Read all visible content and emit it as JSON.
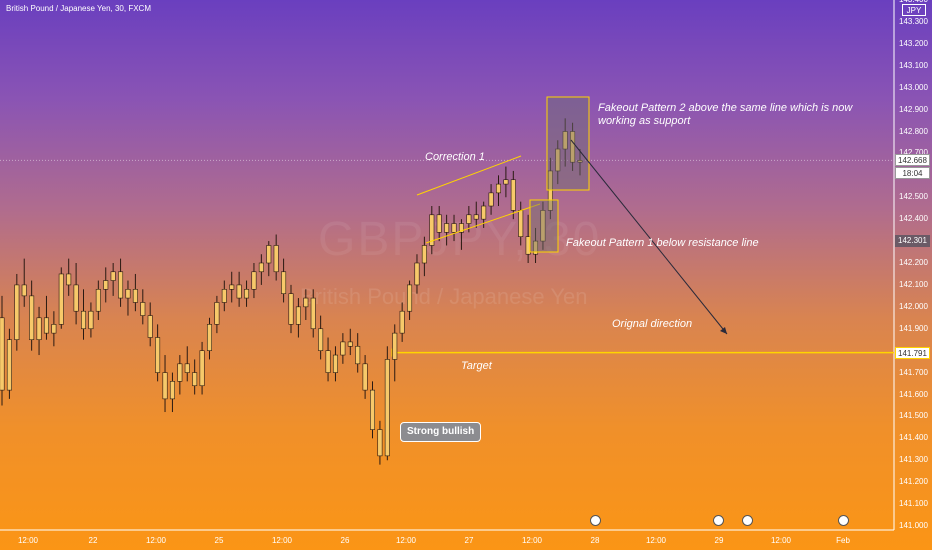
{
  "symbol_title": "British Pound / Japanese Yen, 30, FXCM",
  "currency": "JPY",
  "watermark": {
    "ticker": "GBPJPY, 30",
    "name": "British Pound / Japanese Yen"
  },
  "colors": {
    "candle": "#f7c96a",
    "wick": "#2a1a12",
    "target_line": "#ffd400",
    "box_fill": "rgba(110,110,110,0.45)",
    "box_border": "#ffd400"
  },
  "chart_data": {
    "type": "candlestick",
    "title": "British Pound / Japanese Yen, 30, FXCM",
    "ylim": [
      141.0,
      143.4
    ],
    "y_ticks": [
      "143.400",
      "143.300",
      "143.200",
      "143.100",
      "143.000",
      "142.900",
      "142.800",
      "142.700",
      "142.600",
      "142.500",
      "142.400",
      "142.300",
      "142.200",
      "142.100",
      "142.000",
      "141.900",
      "141.800",
      "141.700",
      "141.600",
      "141.500",
      "141.400",
      "141.300",
      "141.200",
      "141.100",
      "141.000"
    ],
    "x_ticks": [
      "12:00",
      "22",
      "12:00",
      "25",
      "12:00",
      "26",
      "12:00",
      "27",
      "12:00",
      "28",
      "12:00",
      "29",
      "12:00",
      "Feb"
    ],
    "price_badges": [
      {
        "value": "142.668",
        "style": "current"
      },
      {
        "value": "18:04",
        "style": "countdown"
      },
      {
        "value": "142.301",
        "style": "dark"
      },
      {
        "value": "141.791",
        "style": "target"
      }
    ],
    "target_level": 141.791,
    "current_price": 142.668,
    "grid": false,
    "legend": "none",
    "candles": [
      [
        141.95,
        142.05,
        141.55,
        141.62
      ],
      [
        141.62,
        141.9,
        141.58,
        141.85
      ],
      [
        141.85,
        142.15,
        141.8,
        142.1
      ],
      [
        142.1,
        142.22,
        142.0,
        142.05
      ],
      [
        142.05,
        142.12,
        141.8,
        141.85
      ],
      [
        141.85,
        142.0,
        141.78,
        141.95
      ],
      [
        141.95,
        142.05,
        141.85,
        141.88
      ],
      [
        141.88,
        141.98,
        141.82,
        141.92
      ],
      [
        141.92,
        142.18,
        141.9,
        142.15
      ],
      [
        142.15,
        142.22,
        142.05,
        142.1
      ],
      [
        142.1,
        142.2,
        141.92,
        141.98
      ],
      [
        141.98,
        142.08,
        141.85,
        141.9
      ],
      [
        141.9,
        142.02,
        141.86,
        141.98
      ],
      [
        141.98,
        142.12,
        141.94,
        142.08
      ],
      [
        142.08,
        142.18,
        142.02,
        142.12
      ],
      [
        142.12,
        142.2,
        142.05,
        142.16
      ],
      [
        142.16,
        142.22,
        142.0,
        142.04
      ],
      [
        142.04,
        142.12,
        141.96,
        142.08
      ],
      [
        142.08,
        142.15,
        141.98,
        142.02
      ],
      [
        142.02,
        142.08,
        141.92,
        141.96
      ],
      [
        141.96,
        142.02,
        141.82,
        141.86
      ],
      [
        141.86,
        141.92,
        141.66,
        141.7
      ],
      [
        141.7,
        141.78,
        141.52,
        141.58
      ],
      [
        141.58,
        141.7,
        141.52,
        141.66
      ],
      [
        141.66,
        141.78,
        141.6,
        141.74
      ],
      [
        141.74,
        141.82,
        141.66,
        141.7
      ],
      [
        141.7,
        141.76,
        141.6,
        141.64
      ],
      [
        141.64,
        141.84,
        141.6,
        141.8
      ],
      [
        141.8,
        141.95,
        141.76,
        141.92
      ],
      [
        141.92,
        142.05,
        141.88,
        142.02
      ],
      [
        142.02,
        142.12,
        141.98,
        142.08
      ],
      [
        142.08,
        142.16,
        142.02,
        142.1
      ],
      [
        142.1,
        142.16,
        142.0,
        142.04
      ],
      [
        142.04,
        142.12,
        142.0,
        142.08
      ],
      [
        142.08,
        142.2,
        142.04,
        142.16
      ],
      [
        142.16,
        142.24,
        142.1,
        142.2
      ],
      [
        142.2,
        142.3,
        142.14,
        142.28
      ],
      [
        142.28,
        142.33,
        142.12,
        142.16
      ],
      [
        142.16,
        142.22,
        142.02,
        142.06
      ],
      [
        142.06,
        142.1,
        141.88,
        141.92
      ],
      [
        141.92,
        142.04,
        141.86,
        142.0
      ],
      [
        142.0,
        142.08,
        141.94,
        142.04
      ],
      [
        142.04,
        142.08,
        141.86,
        141.9
      ],
      [
        141.9,
        141.96,
        141.76,
        141.8
      ],
      [
        141.8,
        141.86,
        141.66,
        141.7
      ],
      [
        141.7,
        141.82,
        141.66,
        141.78
      ],
      [
        141.78,
        141.88,
        141.74,
        141.84
      ],
      [
        141.84,
        141.9,
        141.78,
        141.82
      ],
      [
        141.82,
        141.88,
        141.7,
        141.74
      ],
      [
        141.74,
        141.78,
        141.58,
        141.62
      ],
      [
        141.62,
        141.66,
        141.4,
        141.44
      ],
      [
        141.44,
        141.48,
        141.28,
        141.32
      ],
      [
        141.32,
        141.82,
        141.3,
        141.76
      ],
      [
        141.76,
        141.92,
        141.66,
        141.88
      ],
      [
        141.88,
        142.02,
        141.84,
        141.98
      ],
      [
        141.98,
        142.12,
        141.94,
        142.1
      ],
      [
        142.1,
        142.24,
        142.06,
        142.2
      ],
      [
        142.2,
        142.32,
        142.14,
        142.28
      ],
      [
        142.28,
        142.46,
        142.24,
        142.42
      ],
      [
        142.42,
        142.46,
        142.3,
        142.34
      ],
      [
        142.34,
        142.42,
        142.28,
        142.38
      ],
      [
        142.38,
        142.42,
        142.3,
        142.34
      ],
      [
        142.34,
        142.4,
        142.26,
        142.38
      ],
      [
        142.38,
        142.46,
        142.34,
        142.42
      ],
      [
        142.42,
        142.48,
        142.36,
        142.4
      ],
      [
        142.4,
        142.48,
        142.36,
        142.46
      ],
      [
        142.46,
        142.56,
        142.42,
        142.52
      ],
      [
        142.52,
        142.6,
        142.46,
        142.56
      ],
      [
        142.56,
        142.64,
        142.5,
        142.58
      ],
      [
        142.58,
        142.62,
        142.4,
        142.44
      ],
      [
        142.44,
        142.48,
        142.28,
        142.32
      ],
      [
        142.32,
        142.42,
        142.2,
        142.24
      ],
      [
        142.24,
        142.36,
        142.2,
        142.3
      ],
      [
        142.3,
        142.48,
        142.26,
        142.44
      ],
      [
        142.44,
        142.68,
        142.4,
        142.62
      ],
      [
        142.62,
        142.76,
        142.56,
        142.72
      ],
      [
        142.72,
        142.86,
        142.64,
        142.8
      ],
      [
        142.8,
        142.84,
        142.62,
        142.66
      ],
      [
        142.66,
        142.72,
        142.6,
        142.668
      ]
    ]
  },
  "annotations": {
    "correction": "Correction 1",
    "fakeout2": "Fakeout Pattern 2 above the same line which is now working as support",
    "fakeout1": "Fakeout Pattern 1 below resistance line",
    "original_direction": "Orignal direction",
    "target": "Target",
    "strong_bullish": "Strong bullish"
  }
}
